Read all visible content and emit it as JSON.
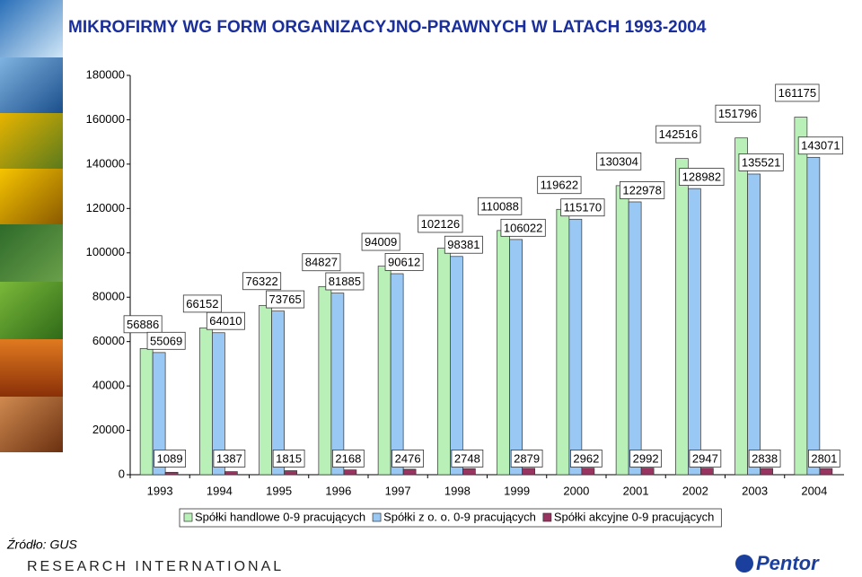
{
  "chart_data": {
    "type": "bar",
    "title": "MIKROFIRMY WG FORM ORGANIZACYJNO-PRAWNYCH W LATACH 1993-2004",
    "categories": [
      "1993",
      "1994",
      "1995",
      "1996",
      "1997",
      "1998",
      "1999",
      "2000",
      "2001",
      "2002",
      "2003",
      "2004"
    ],
    "series": [
      {
        "name": "Spółki handlowe 0-9 pracujących",
        "color": "#b8f0b8",
        "values": [
          56886,
          66152,
          76322,
          84827,
          94009,
          102126,
          110088,
          119622,
          130304,
          142516,
          151796,
          161175
        ]
      },
      {
        "name": "Spółki z o. o. 0-9 pracujących",
        "color": "#99c8f5",
        "values": [
          55069,
          64010,
          73765,
          81885,
          90612,
          98381,
          106022,
          115170,
          122978,
          128982,
          135521,
          143071
        ]
      },
      {
        "name": "Spółki akcyjne 0-9 pracujących",
        "color": "#993360",
        "values": [
          1089,
          1387,
          1815,
          2168,
          2476,
          2748,
          2879,
          2962,
          2992,
          2947,
          2838,
          2801
        ]
      }
    ],
    "ylim": [
      0,
      180000
    ],
    "yticks": [
      0,
      20000,
      40000,
      60000,
      80000,
      100000,
      120000,
      140000,
      160000,
      180000
    ],
    "grid": false
  },
  "source": "Źródło: GUS",
  "footer": "RESEARCH INTERNATIONAL",
  "logo": "Pentor"
}
